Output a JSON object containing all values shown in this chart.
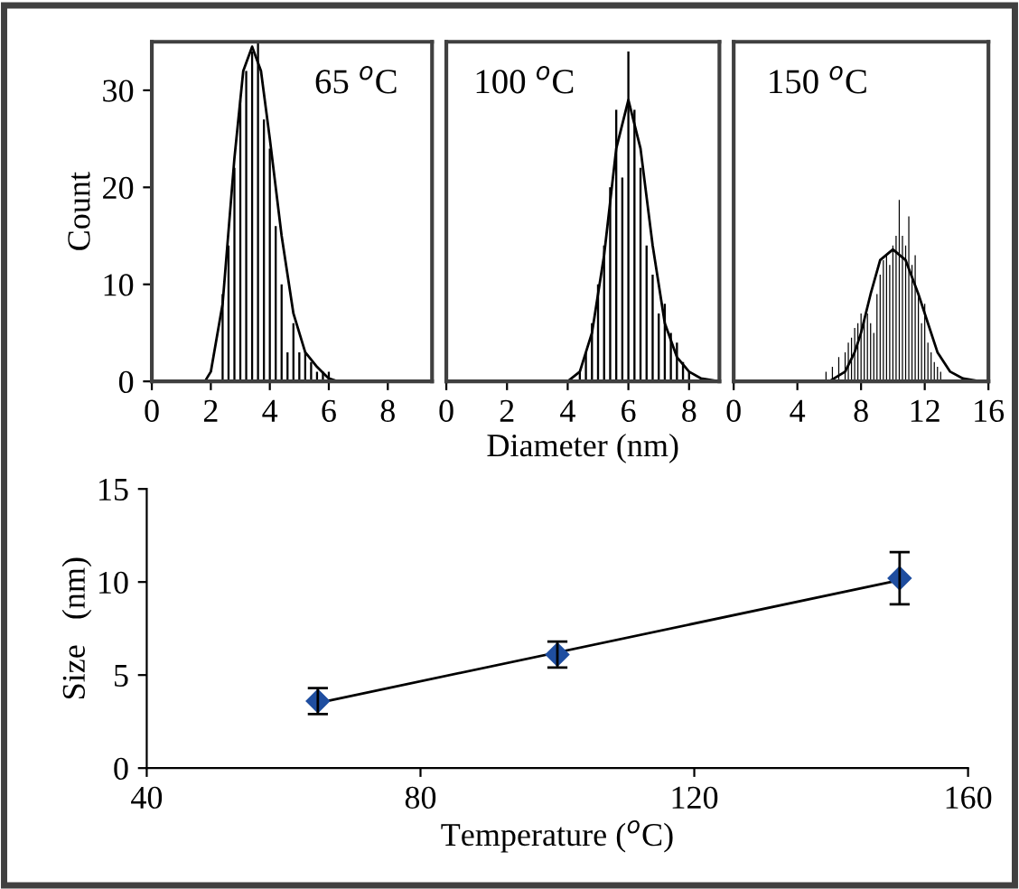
{
  "chart_data": [
    {
      "type": "bar",
      "ylabel": "Count",
      "xlim": [
        0,
        9.5
      ],
      "ylim": [
        0,
        35
      ],
      "xticks": [
        0,
        2,
        4,
        6,
        8
      ],
      "yticks": [
        0,
        10,
        20,
        30
      ],
      "annotations": [
        "65 $^{o}$C"
      ],
      "series": [
        {
          "type": "bar",
          "color": "#000000",
          "x": [
            2.4,
            2.6,
            2.8,
            3.0,
            3.2,
            3.4,
            3.6,
            3.8,
            4.0,
            4.2,
            4.4,
            4.6,
            4.8,
            5.0,
            5.2,
            5.4,
            5.6,
            5.8,
            6.0
          ],
          "values": [
            9,
            14,
            22,
            29,
            32,
            34,
            35,
            27,
            24,
            16,
            10,
            3,
            6,
            3,
            3,
            2,
            1,
            1,
            1
          ]
        },
        {
          "type": "line",
          "color": "#000000",
          "x": [
            0,
            1.8,
            2.0,
            2.4,
            2.8,
            3.1,
            3.4,
            3.7,
            4.0,
            4.4,
            4.8,
            5.2,
            5.6,
            6.0,
            6.3,
            9.5
          ],
          "values": [
            0,
            0,
            1,
            8,
            23,
            32,
            34.5,
            32,
            25,
            15,
            7,
            3,
            1.5,
            0.3,
            0,
            0
          ]
        }
      ]
    },
    {
      "type": "bar",
      "xlabel": "Diameter (nm)",
      "tick_labels": "x",
      "xlim": [
        0,
        9
      ],
      "ylim": [
        0,
        35
      ],
      "xticks": [
        0,
        2,
        4,
        6,
        8
      ],
      "annotations": [
        "100 $^{o}$C"
      ],
      "series": [
        {
          "type": "bar",
          "color": "#000000",
          "x": [
            4.4,
            4.6,
            4.8,
            5.0,
            5.2,
            5.4,
            5.6,
            5.8,
            6.0,
            6.2,
            6.4,
            6.6,
            6.8,
            7.0,
            7.2,
            7.4,
            7.6,
            7.8,
            8.0
          ],
          "values": [
            1,
            3,
            6,
            10,
            14,
            20,
            28,
            21,
            34,
            28,
            22,
            14,
            11,
            7,
            8,
            5,
            4,
            2,
            1
          ]
        },
        {
          "type": "line",
          "color": "#000000",
          "x": [
            0,
            4.0,
            4.4,
            4.8,
            5.2,
            5.6,
            6.0,
            6.4,
            6.8,
            7.2,
            7.6,
            8.0,
            8.4,
            9.0
          ],
          "values": [
            0,
            0,
            1,
            5,
            13,
            24,
            29,
            24,
            14,
            6,
            2.5,
            1,
            0.3,
            0
          ]
        }
      ]
    },
    {
      "type": "bar",
      "tick_labels": "x",
      "xlim": [
        0,
        16
      ],
      "ylim": [
        0,
        35
      ],
      "xticks": [
        0,
        4,
        8,
        12,
        16
      ],
      "annotations": [
        "150 $^{o}$C"
      ],
      "series": [
        {
          "type": "bar",
          "color": "#000000",
          "x": [
            5.8,
            6.2,
            6.6,
            7.0,
            7.2,
            7.4,
            7.6,
            7.8,
            8.0,
            8.2,
            8.4,
            8.6,
            8.8,
            9.0,
            9.2,
            9.4,
            9.6,
            9.8,
            10.0,
            10.2,
            10.4,
            10.6,
            10.8,
            11.0,
            11.2,
            11.4,
            11.6,
            11.8,
            12.0,
            12.2,
            12.4,
            12.6,
            12.8,
            13.0
          ],
          "values": [
            1,
            1.5,
            2.5,
            3,
            4,
            4.5,
            5.5,
            6,
            7,
            6.5,
            7,
            6,
            5,
            9,
            11,
            12.5,
            13,
            12,
            14,
            15,
            18.7,
            15,
            14,
            17,
            12,
            13,
            9,
            6,
            8,
            4,
            3,
            2,
            1.5,
            1
          ]
        },
        {
          "type": "line",
          "color": "#000000",
          "x": [
            0,
            6.0,
            7.0,
            7.6,
            8.0,
            8.6,
            9.2,
            10.0,
            10.8,
            11.6,
            12.2,
            12.8,
            13.6,
            14.4,
            15.5,
            16
          ],
          "values": [
            0,
            0,
            1,
            3,
            5,
            9,
            12.5,
            13.6,
            12.5,
            9,
            6,
            3,
            1,
            0.3,
            0,
            0
          ]
        }
      ]
    },
    {
      "type": "scatter",
      "xlabel": "Temperature ($^{o}$C)",
      "ylabel": "Size   (nm)",
      "xlim": [
        40,
        160
      ],
      "ylim": [
        0,
        15
      ],
      "xticks": [
        40,
        80,
        120,
        160
      ],
      "yticks": [
        0,
        5,
        10,
        15
      ],
      "series": [
        {
          "type": "scatter",
          "color": "#1f4ea0",
          "marker": "diamond",
          "x": [
            65,
            100,
            150
          ],
          "values": [
            3.6,
            6.1,
            10.2
          ],
          "errors": [
            0.7,
            0.7,
            1.4
          ]
        },
        {
          "type": "line",
          "color": "#000000",
          "x": [
            65,
            150
          ],
          "values": [
            3.5,
            10.1
          ]
        }
      ]
    }
  ]
}
